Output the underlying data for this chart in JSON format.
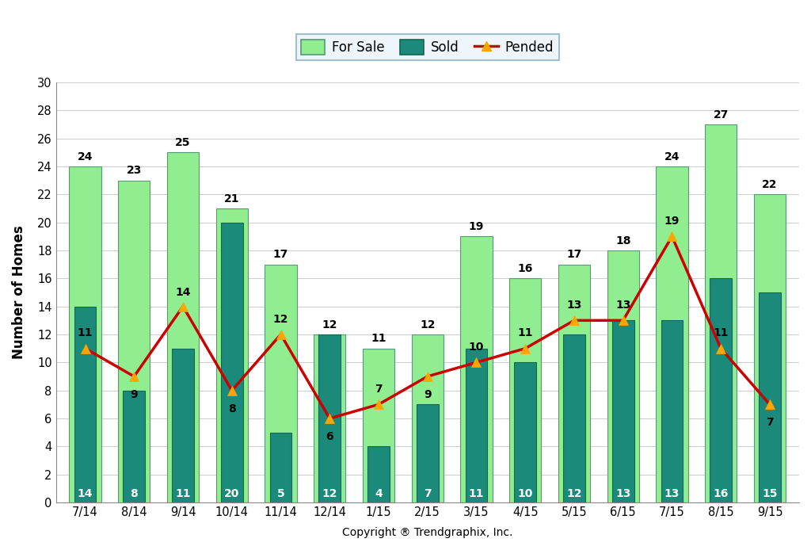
{
  "categories": [
    "7/14",
    "8/14",
    "9/14",
    "10/14",
    "11/14",
    "12/14",
    "1/15",
    "2/15",
    "3/15",
    "4/15",
    "5/15",
    "6/15",
    "7/15",
    "8/15",
    "9/15"
  ],
  "for_sale": [
    24,
    23,
    25,
    21,
    17,
    12,
    11,
    12,
    19,
    16,
    17,
    18,
    24,
    27,
    22
  ],
  "sold": [
    14,
    8,
    11,
    20,
    5,
    12,
    4,
    7,
    11,
    10,
    12,
    13,
    13,
    16,
    15
  ],
  "pended": [
    11,
    9,
    14,
    8,
    12,
    6,
    7,
    9,
    10,
    11,
    13,
    13,
    19,
    11,
    7
  ],
  "for_sale_color": "#90EE90",
  "sold_color": "#1B8A7A",
  "pended_color": "#CC0000",
  "pended_marker_color": "#FFA500",
  "ylabel": "Number of Homes",
  "xlabel": "Copyright ® Trendgraphix, Inc.",
  "ylim": [
    0,
    30
  ],
  "yticks": [
    0,
    2,
    4,
    6,
    8,
    10,
    12,
    14,
    16,
    18,
    20,
    22,
    24,
    26,
    28,
    30
  ],
  "legend_for_sale": "For Sale",
  "legend_sold": "Sold",
  "legend_pended": "Pended",
  "for_sale_bar_width": 0.65,
  "sold_bar_width": 0.45,
  "background_color": "#FFFFFF",
  "plot_bg_color": "#FFFFFF",
  "grid_color": "#CCCCCC",
  "legend_bg": "#EAF4FB",
  "legend_edge": "#8EAFC2"
}
